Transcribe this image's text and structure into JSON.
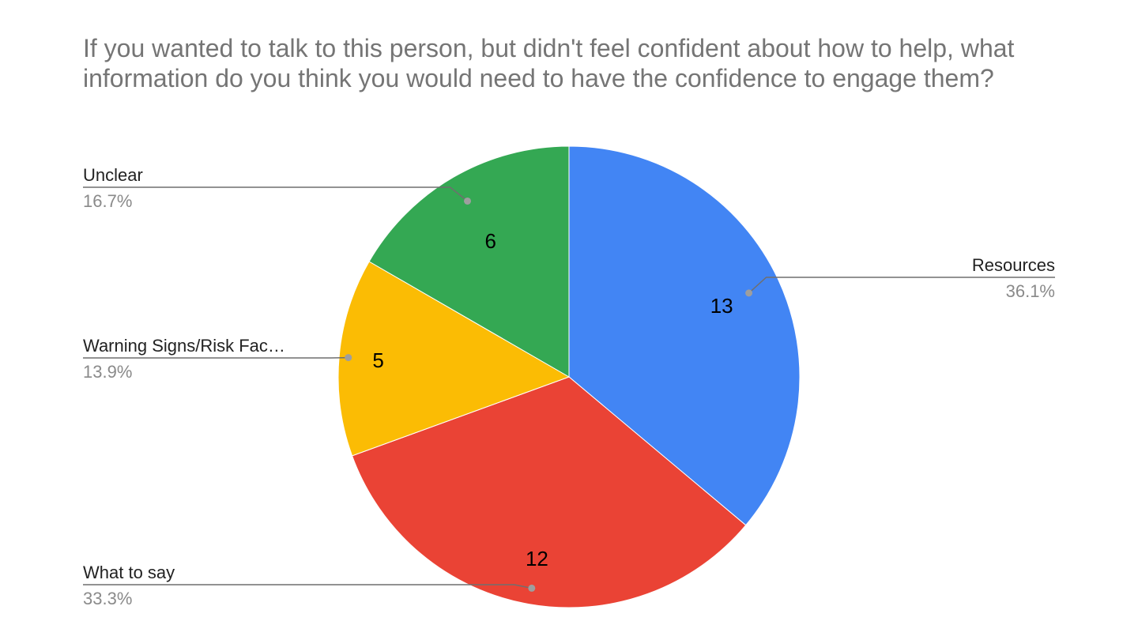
{
  "chart_data": {
    "type": "pie",
    "title": "If you wanted to talk to this person, but didn't feel confident about how to help, what information do you think you would need to have the confidence to engage them?",
    "slices": [
      {
        "label": "Resources",
        "value": 13,
        "percent_label": "36.1%",
        "color": "#4285F4"
      },
      {
        "label": "What to say",
        "value": 12,
        "percent_label": "33.3%",
        "color": "#EA4335"
      },
      {
        "label": "Warning Signs/Risk Fac…",
        "value": 5,
        "percent_label": "13.9%",
        "color": "#FBBC04"
      },
      {
        "label": "Unclear",
        "value": 6,
        "percent_label": "16.7%",
        "color": "#34A853"
      }
    ],
    "start_angle_deg": 0,
    "direction": "clockwise",
    "data_labels": "values inside slices",
    "legend": "labeled leader lines"
  }
}
